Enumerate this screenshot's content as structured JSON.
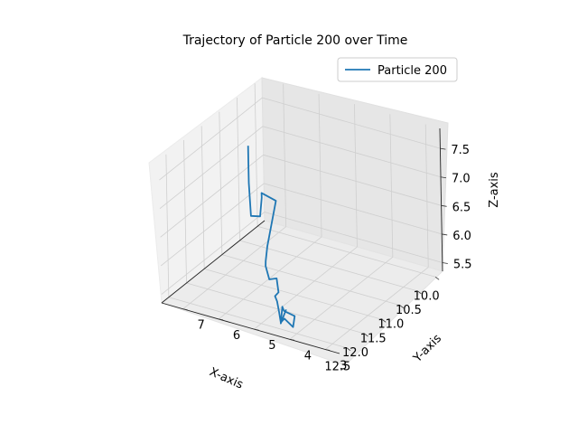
{
  "chart_data": {
    "type": "line",
    "projection": "3d",
    "title": "Trajectory of Particle 200 over Time",
    "xlabel": "X-axis",
    "ylabel": "Y-axis",
    "zlabel": "Z-axis",
    "xticks": [
      "10.0",
      "10.5",
      "11.0",
      "11.5",
      "12.0",
      "12.5"
    ],
    "yticks": [
      "3",
      "4",
      "5",
      "6",
      "7"
    ],
    "zticks": [
      "5.5",
      "6.0",
      "6.5",
      "7.0",
      "7.5"
    ],
    "xlim": [
      9.8,
      12.7
    ],
    "ylim": [
      2.6,
      7.6
    ],
    "zlim": [
      5.35,
      7.85
    ],
    "grid": true,
    "legend": {
      "position": "upper-right"
    },
    "series": [
      {
        "name": "Particle 200",
        "color": "#1f77b4",
        "points": [
          [
            11.3,
            6.5,
            7.6
          ],
          [
            11.25,
            6.55,
            7.3
          ],
          [
            11.3,
            6.5,
            6.95
          ],
          [
            11.55,
            6.2,
            6.55
          ],
          [
            11.2,
            6.3,
            6.35
          ],
          [
            10.85,
            6.6,
            6.45
          ],
          [
            10.95,
            6.5,
            6.6
          ],
          [
            10.9,
            6.15,
            6.5
          ],
          [
            11.5,
            5.7,
            6.4
          ],
          [
            11.85,
            5.45,
            6.3
          ],
          [
            12.1,
            5.25,
            6.2
          ],
          [
            12.3,
            5.05,
            6.25
          ],
          [
            12.4,
            4.85,
            6.1
          ],
          [
            12.1,
            4.95,
            5.95
          ],
          [
            12.3,
            4.7,
            5.85
          ],
          [
            12.35,
            4.75,
            5.8
          ],
          [
            12.1,
            4.95,
            5.55
          ],
          [
            12.2,
            4.8,
            5.45
          ],
          [
            12.4,
            4.55,
            5.4
          ],
          [
            12.2,
            4.65,
            5.35
          ],
          [
            12.65,
            3.95,
            5.55
          ],
          [
            12.65,
            3.9,
            5.75
          ],
          [
            12.55,
            4.3,
            5.72
          ],
          [
            12.35,
            4.55,
            5.65
          ],
          [
            12.5,
            4.45,
            5.45
          ],
          [
            11.95,
            4.85,
            5.35
          ]
        ]
      }
    ]
  }
}
